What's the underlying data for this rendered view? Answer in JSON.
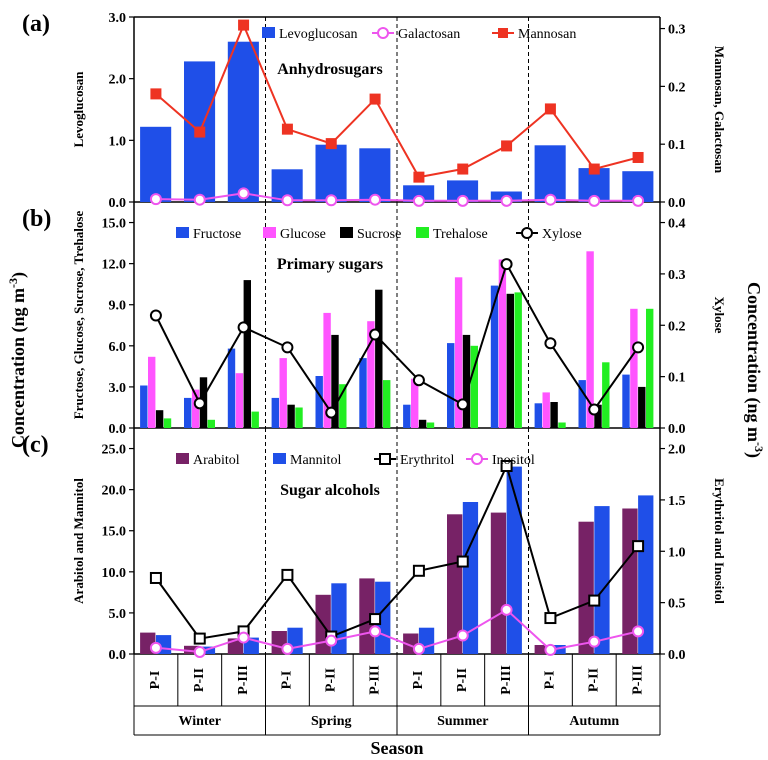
{
  "chart_data": {
    "type": "bar",
    "xlabel": "Season",
    "left_outer_label": "Concentration (ng m⁻³)",
    "right_outer_label": "Concentration (ng m⁻³)",
    "periods": [
      "P-I",
      "P-II",
      "P-III",
      "P-I",
      "P-II",
      "P-III",
      "P-I",
      "P-II",
      "P-III",
      "P-I",
      "P-II",
      "P-III"
    ],
    "seasons": [
      "Winter",
      "Spring",
      "Summer",
      "Autumn"
    ],
    "panels": [
      {
        "letter": "(a)",
        "title": "Anhydrosugars",
        "ylabel_left": "Levoglucosan",
        "ylabel_right": "Mannosan, Galactosan",
        "left_ticks": [
          "0.0",
          "1.0",
          "2.0",
          "3.0"
        ],
        "right_ticks": [
          "0.0",
          "0.1",
          "0.2",
          "0.3"
        ],
        "ylim_left": [
          0,
          3
        ],
        "ylim_right": [
          0,
          0.32
        ],
        "bar_series": [
          {
            "name": "Levoglucosan",
            "color": "#1f4fe8",
            "values": [
              1.22,
              2.28,
              2.6,
              0.53,
              0.93,
              0.87,
              0.27,
              0.35,
              0.17,
              0.92,
              0.55,
              0.5
            ]
          }
        ],
        "line_series": [
          {
            "name": "Galactosan",
            "color": "#ee55ee",
            "marker": "circle-open",
            "values": [
              0.005,
              0.004,
              0.015,
              0.003,
              0.003,
              0.004,
              0.002,
              0.002,
              0.002,
              0.004,
              0.002,
              0.002
            ]
          },
          {
            "name": "Mannosan",
            "color": "#ee3322",
            "marker": "square-filled",
            "values": [
              0.187,
              0.121,
              0.306,
              0.126,
              0.101,
              0.178,
              0.043,
              0.057,
              0.097,
              0.161,
              0.057,
              0.077
            ]
          }
        ]
      },
      {
        "letter": "(b)",
        "title": "Primary sugars",
        "ylabel_left": "Fructose, Glucose, Sucrose, Trehalose",
        "ylabel_right": "Xylose",
        "left_ticks": [
          "0.0",
          "3.0",
          "6.0",
          "9.0",
          "12.0",
          "15.0"
        ],
        "right_ticks": [
          "0.0",
          "0.1",
          "0.2",
          "0.3",
          "0.4"
        ],
        "ylim_left": [
          0,
          16.5
        ],
        "ylim_right": [
          0,
          0.44
        ],
        "bar_series": [
          {
            "name": "Fructose",
            "color": "#1f4fe8",
            "values": [
              3.1,
              2.2,
              5.8,
              2.2,
              3.8,
              5.1,
              1.7,
              6.2,
              10.4,
              1.8,
              3.5,
              3.9
            ]
          },
          {
            "name": "Glucose",
            "color": "#ff55ff",
            "values": [
              5.2,
              2.8,
              4.0,
              5.1,
              8.4,
              7.8,
              3.6,
              11.0,
              12.3,
              2.6,
              12.9,
              8.7
            ]
          },
          {
            "name": "Sucrose",
            "color": "#000000",
            "values": [
              1.3,
              3.7,
              10.8,
              1.7,
              6.8,
              10.1,
              0.6,
              6.8,
              9.8,
              1.9,
              1.7,
              3.0
            ]
          },
          {
            "name": "Trehalose",
            "color": "#22ee22",
            "values": [
              0.7,
              0.6,
              1.2,
              1.5,
              3.2,
              3.5,
              0.4,
              6.0,
              9.9,
              0.4,
              4.8,
              8.7
            ]
          }
        ],
        "line_series": [
          {
            "name": "Xylose",
            "color": "#000000",
            "marker": "circle-open",
            "values": [
              0.219,
              0.048,
              0.196,
              0.157,
              0.03,
              0.182,
              0.093,
              0.046,
              0.319,
              0.165,
              0.036,
              0.157
            ]
          }
        ]
      },
      {
        "letter": "(c)",
        "title": "Sugar alcohols",
        "ylabel_left": "Arabitol and Mannitol",
        "ylabel_right": "Erythritol and Inositol",
        "left_ticks": [
          "0.0",
          "5.0",
          "10.0",
          "15.0",
          "20.0",
          "25.0"
        ],
        "right_ticks": [
          "0.0",
          "0.5",
          "1.0",
          "1.5",
          "2.0"
        ],
        "ylim_left": [
          0,
          27.5
        ],
        "ylim_right": [
          0,
          2.2
        ],
        "bar_series": [
          {
            "name": "Arabitol",
            "color": "#772266",
            "values": [
              2.6,
              1.0,
              1.9,
              2.8,
              7.2,
              9.2,
              2.5,
              17.0,
              17.2,
              1.1,
              16.1,
              17.7
            ]
          },
          {
            "name": "Mannitol",
            "color": "#1f4fe8",
            "values": [
              2.3,
              0.9,
              2.0,
              3.2,
              8.6,
              8.8,
              3.2,
              18.5,
              22.8,
              1.1,
              18.0,
              19.3
            ]
          }
        ],
        "line_series": [
          {
            "name": "Erythritol",
            "color": "#000000",
            "marker": "square-open",
            "values": [
              0.74,
              0.15,
              0.22,
              0.77,
              0.17,
              0.34,
              0.81,
              0.9,
              1.83,
              0.35,
              0.52,
              1.05
            ]
          },
          {
            "name": "Inositol",
            "color": "#ee55ee",
            "marker": "circle-open",
            "values": [
              0.06,
              0.02,
              0.16,
              0.05,
              0.13,
              0.22,
              0.05,
              0.18,
              0.43,
              0.04,
              0.12,
              0.22
            ]
          }
        ]
      }
    ]
  }
}
